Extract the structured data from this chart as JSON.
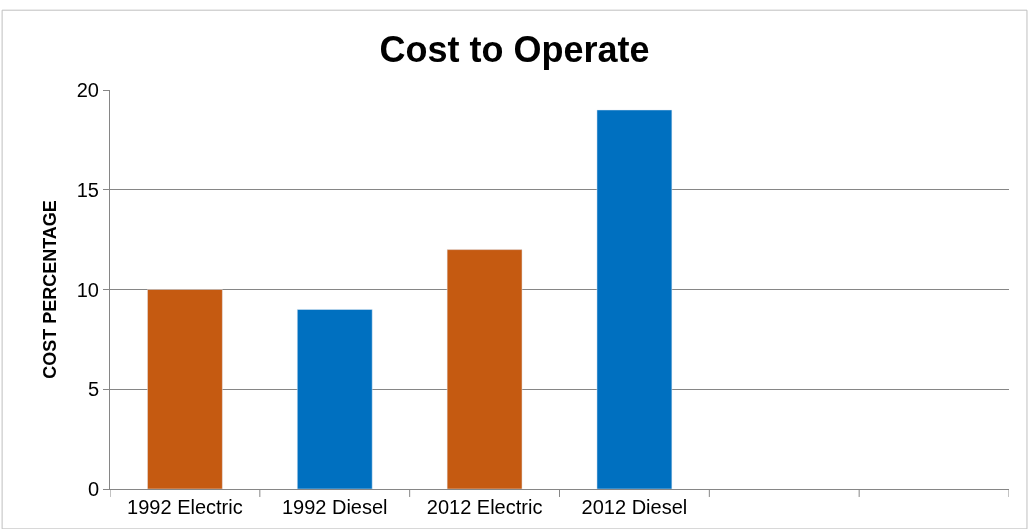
{
  "chart_data": {
    "type": "bar",
    "title": "Cost to Operate",
    "ylabel": "COST PERCENTAGE",
    "categories": [
      "1992 Electric",
      "1992 Diesel",
      "2012 Electric",
      "2012 Diesel",
      null,
      null
    ],
    "values": [
      10,
      9,
      12,
      19,
      null,
      null
    ],
    "colors": [
      "#c55a11",
      "#0070c0",
      "#c55a11",
      "#0070c0",
      "#0070c0",
      "#0070c0"
    ],
    "ylim": [
      0,
      20
    ],
    "yticks": [
      0,
      5,
      10,
      15,
      20
    ],
    "grid": "y"
  }
}
